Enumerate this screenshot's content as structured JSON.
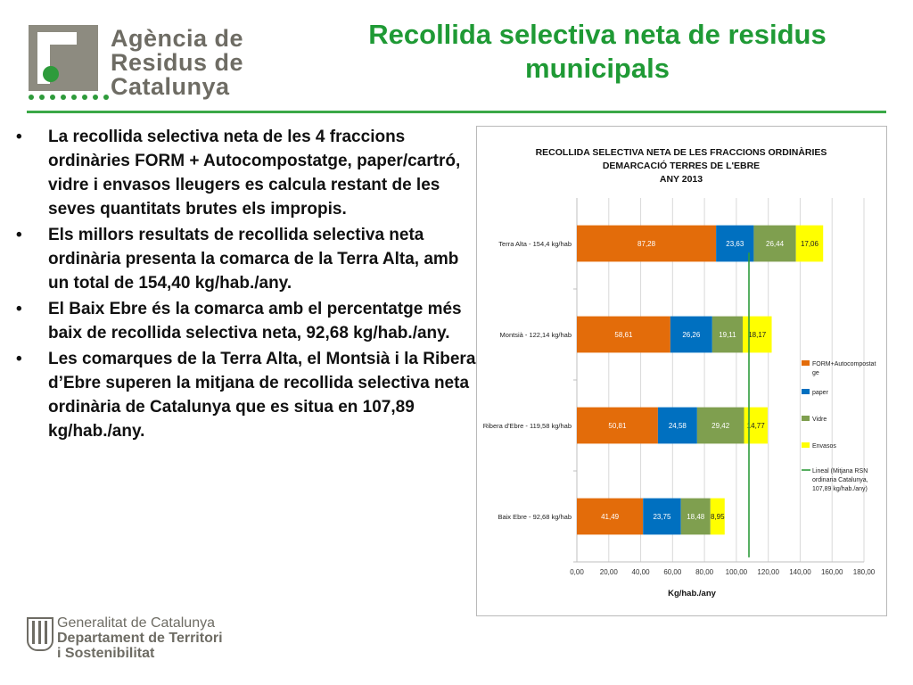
{
  "header": {
    "logo_lines": [
      "Agència de",
      "Residus de",
      "Catalunya"
    ],
    "title": "Recollida selectiva neta de residus municipals"
  },
  "bullets": [
    "La recollida selectiva neta de les 4 fraccions ordinàries FORM + Autocompostatge, paper/cartró, vidre i envasos lleugers es calcula restant de les seves quantitats brutes els impropis.",
    "Els millors resultats de recollida selectiva neta ordinària presenta la comarca de la Terra Alta, amb un total de 154,40 kg/hab./any.",
    "El Baix Ebre és la comarca amb el percentatge més baix de recollida selectiva neta, 92,68 kg/hab./any.",
    "Les comarques de la Terra Alta, el Montsià i la Ribera d’Ebre superen la mitjana de recollida selectiva neta ordinària de Catalunya que es situa en 107,89 kg/hab./any."
  ],
  "footer": {
    "lines": [
      "Generalitat de Catalunya",
      "Departament de Territori",
      "i Sostenibilitat"
    ]
  },
  "chart_data": {
    "type": "bar",
    "orientation": "horizontal",
    "stacked": true,
    "title": [
      "RECOLLIDA SELECTIVA NETA DE LES FRACCIONS ORDINÀRIES",
      "DEMARCACIÓ TERRES DE L'EBRE",
      "ANY 2013"
    ],
    "xlabel": "Kg/hab./any",
    "ylabel": "",
    "xlim": [
      0,
      180
    ],
    "xticks": [
      "0,00",
      "20,00",
      "40,00",
      "60,00",
      "80,00",
      "100,00",
      "120,00",
      "140,00",
      "160,00",
      "180,00"
    ],
    "categories": [
      "Terra Alta - 154,4 kg/hab",
      "Montsià - 122,14 kg/hab",
      "Ribera d'Ebre - 119,58 kg/hab",
      "Baix Ebre - 92,68 kg/hab"
    ],
    "series": [
      {
        "name": "FORM+Autocompostatge",
        "color": "#e36c0a",
        "values": [
          87.28,
          58.61,
          50.81,
          41.49
        ],
        "labels": [
          "87,28",
          "58,61",
          "50,81",
          "41,49"
        ]
      },
      {
        "name": "paper",
        "color": "#0070c0",
        "values": [
          23.63,
          26.26,
          24.58,
          23.75
        ],
        "labels": [
          "23,63",
          "26,26",
          "24,58",
          "23,75"
        ]
      },
      {
        "name": "Vidre",
        "color": "#7f9f4f",
        "values": [
          26.44,
          19.11,
          29.42,
          18.48
        ],
        "labels": [
          "26,44",
          "19,11",
          "29,42",
          "18,48"
        ]
      },
      {
        "name": "Envasos",
        "color": "#ffff00",
        "values": [
          17.06,
          18.17,
          14.77,
          8.95
        ],
        "labels": [
          "17,06",
          "18,17",
          "14,77",
          "8,95"
        ]
      }
    ],
    "reference_line": {
      "name": "Lineal (Mitjana RSN ordinaria Catalunya, 107,89 kg/hab./any)",
      "value": 107.89,
      "color": "#2e9b3b"
    },
    "legend_entries": [
      [
        "FORM+Autocompostat",
        "ge"
      ],
      [
        "paper"
      ],
      [
        "Vidre"
      ],
      [
        "Envasos"
      ],
      [
        "Lineal (Mitjana RSN",
        "ordinaria Catalunya,",
        "107,89 kg/hab./any)"
      ]
    ],
    "grid": true,
    "legend": "right"
  }
}
